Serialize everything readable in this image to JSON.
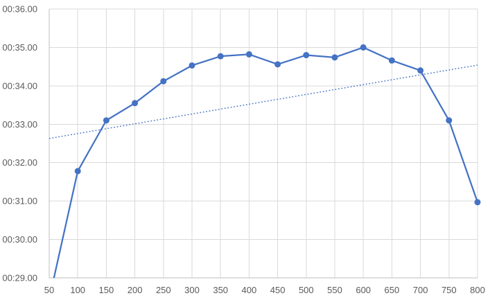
{
  "chart_data": {
    "type": "line",
    "title": "",
    "xlabel": "",
    "ylabel": "",
    "x": [
      50,
      100,
      150,
      200,
      250,
      300,
      350,
      400,
      450,
      500,
      550,
      600,
      650,
      700,
      750,
      800
    ],
    "series": [
      {
        "name": "",
        "marker": "circle",
        "values": [
          28.45,
          31.78,
          33.1,
          33.55,
          34.12,
          34.53,
          34.77,
          34.82,
          34.56,
          34.8,
          34.74,
          35.0,
          34.66,
          34.4,
          33.1,
          30.97
        ]
      }
    ],
    "trendline": {
      "style": "dotted",
      "x": [
        50,
        800
      ],
      "values": [
        32.63,
        34.54
      ]
    },
    "xlim": [
      50,
      800
    ],
    "ylim": [
      29,
      36
    ],
    "x_ticks": [
      50,
      100,
      150,
      200,
      250,
      300,
      350,
      400,
      450,
      500,
      550,
      600,
      650,
      700,
      750,
      800
    ],
    "x_tick_labels": [
      "50",
      "100",
      "150",
      "200",
      "250",
      "300",
      "350",
      "400",
      "450",
      "500",
      "550",
      "600",
      "650",
      "700",
      "750",
      "800"
    ],
    "y_ticks": [
      29,
      30,
      31,
      32,
      33,
      34,
      35,
      36
    ],
    "y_tick_labels": [
      "00:29.00",
      "00:30.00",
      "00:31.00",
      "00:32.00",
      "00:33.00",
      "00:34.00",
      "00:35.00",
      "00:36.00"
    ],
    "grid": true,
    "legend": false
  },
  "style": {
    "background": "#ffffff",
    "series_color": "#4472C4",
    "marker_color": "#4472C4",
    "trendline_color": "#4472C4",
    "gridline_color": "#D9D9D9",
    "axis_line_color": "#BFBFBF",
    "tick_label_color": "#595959"
  }
}
